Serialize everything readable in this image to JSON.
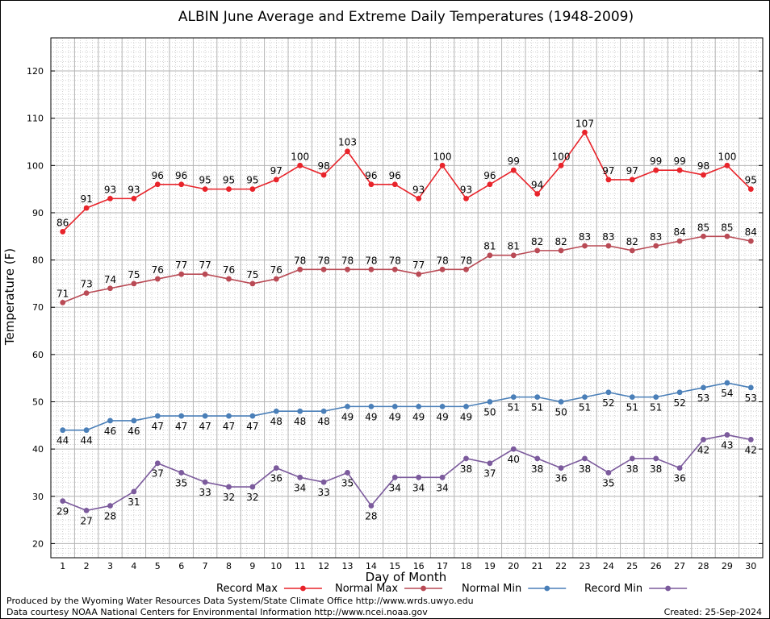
{
  "chart_data": {
    "type": "line",
    "title": "ALBIN June Average and Extreme Daily Temperatures (1948-2009)",
    "xlabel": "Day of Month",
    "ylabel": "Temperature (F)",
    "xlim": [
      0.5,
      30.5
    ],
    "ylim": [
      17,
      127
    ],
    "x": [
      1,
      2,
      3,
      4,
      5,
      6,
      7,
      8,
      9,
      10,
      11,
      12,
      13,
      14,
      15,
      16,
      17,
      18,
      19,
      20,
      21,
      22,
      23,
      24,
      25,
      26,
      27,
      28,
      29,
      30
    ],
    "y_ticks": [
      20,
      30,
      40,
      50,
      60,
      70,
      80,
      90,
      100,
      110,
      120
    ],
    "grid": true,
    "legend_position": "bottom",
    "series": [
      {
        "name": "Record Max",
        "color": "#e8232a",
        "values": [
          86,
          91,
          93,
          93,
          96,
          96,
          95,
          95,
          95,
          97,
          100,
          98,
          103,
          96,
          96,
          93,
          100,
          93,
          96,
          99,
          94,
          100,
          107,
          97,
          97,
          99,
          99,
          98,
          100,
          95
        ]
      },
      {
        "name": "Normal Max",
        "color": "#b94a55",
        "values": [
          71,
          73,
          74,
          75,
          76,
          77,
          77,
          76,
          75,
          76,
          78,
          78,
          78,
          78,
          78,
          77,
          78,
          78,
          81,
          81,
          82,
          82,
          83,
          83,
          82,
          83,
          84,
          85,
          85,
          84
        ]
      },
      {
        "name": "Normal Min",
        "color": "#4a7fb8",
        "values": [
          44,
          44,
          46,
          46,
          47,
          47,
          47,
          47,
          47,
          48,
          48,
          48,
          49,
          49,
          49,
          49,
          49,
          49,
          50,
          51,
          51,
          50,
          51,
          52,
          51,
          51,
          52,
          53,
          54,
          53
        ]
      },
      {
        "name": "Record Min",
        "color": "#7b5a9c",
        "values": [
          29,
          27,
          28,
          31,
          37,
          35,
          33,
          32,
          32,
          36,
          34,
          33,
          35,
          28,
          34,
          34,
          34,
          38,
          37,
          40,
          38,
          36,
          38,
          35,
          38,
          38,
          36,
          42,
          43,
          42
        ]
      }
    ]
  },
  "footer": {
    "produced_by": "Produced by the Wyoming Water Resources Data System/State Climate Office http://www.wrds.uwyo.edu",
    "courtesy": "Data courtesy NOAA National Centers for Environmental Information http://www.ncei.noaa.gov",
    "created": "Created:  25-Sep-2024"
  }
}
